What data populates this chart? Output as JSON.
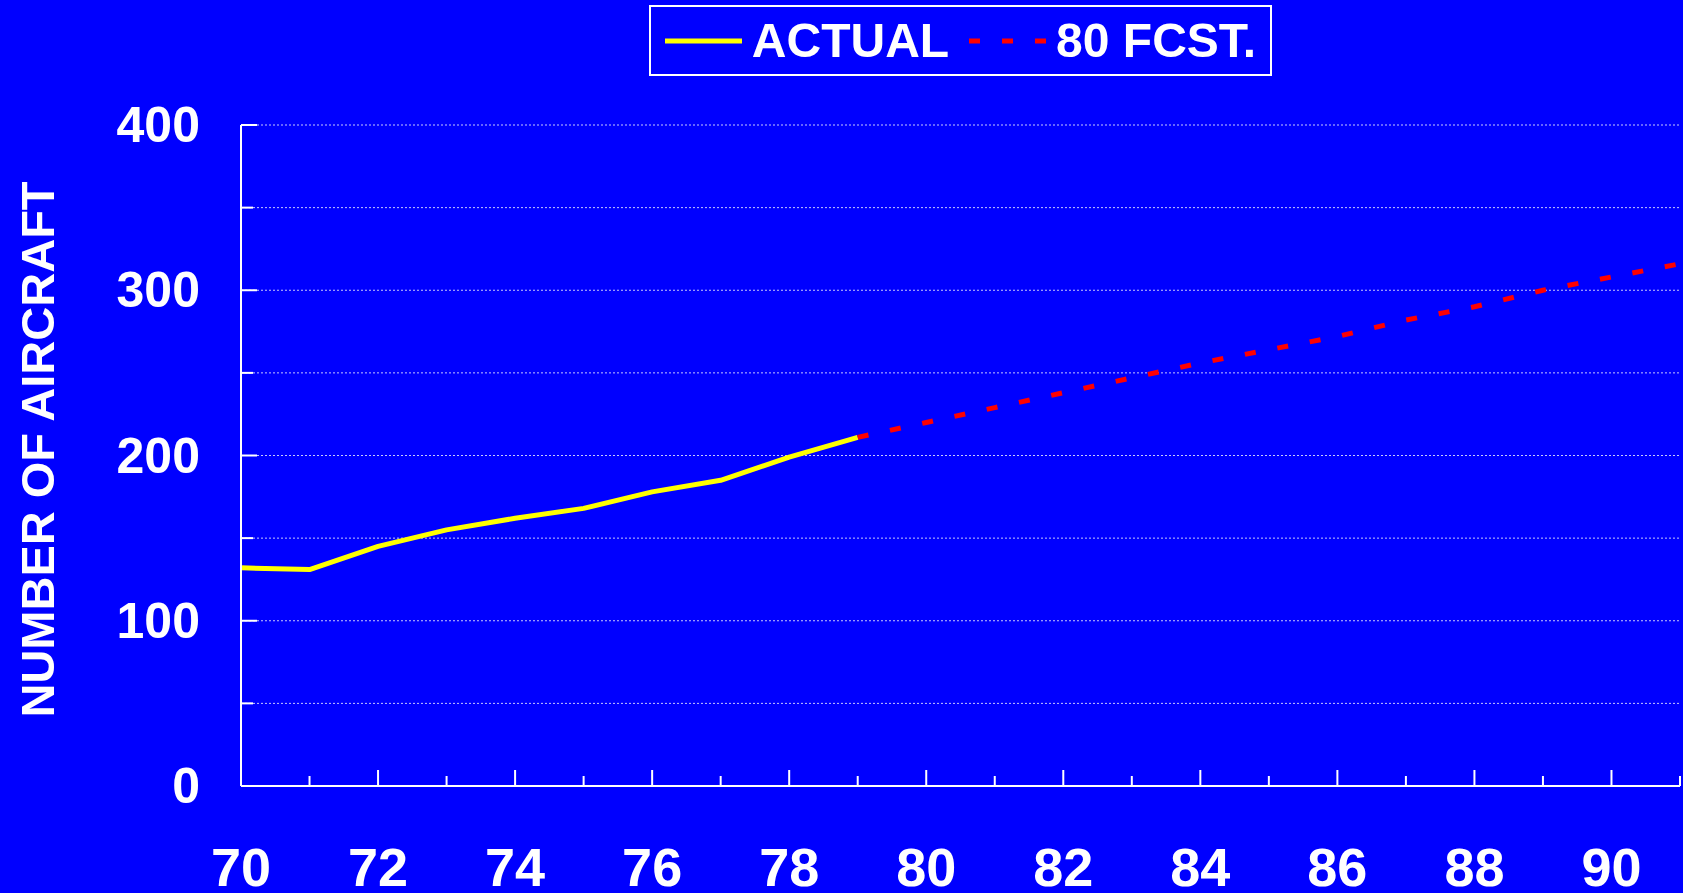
{
  "chart_data": {
    "type": "line",
    "ylabel": "NUMBER OF AIRCRAFT",
    "series": [
      {
        "name": "ACTUAL",
        "color": "#ffff00",
        "line_style": "solid",
        "x": [
          70,
          71,
          72,
          73,
          74,
          75,
          76,
          77,
          78,
          79
        ],
        "values": [
          132,
          131,
          145,
          155,
          162,
          168,
          178,
          185,
          199,
          211
        ]
      },
      {
        "name": "80 FCST.",
        "color": "#ff0000",
        "line_style": "dashed",
        "x": [
          79,
          80,
          81,
          82,
          83,
          84,
          85,
          86,
          87,
          88,
          89,
          90,
          91
        ],
        "values": [
          211,
          220,
          229,
          238,
          247,
          256,
          264,
          272,
          282,
          290,
          300,
          308,
          316
        ]
      }
    ],
    "xlim": [
      70,
      91
    ],
    "xticks": [
      70,
      {
        "value": 71,
        "label": null
      },
      72,
      {
        "value": 73,
        "label": null
      },
      74,
      {
        "value": 75,
        "label": null
      },
      76,
      {
        "value": 77,
        "label": null
      },
      78,
      {
        "value": 79,
        "label": null
      },
      80,
      {
        "value": 81,
        "label": null
      },
      82,
      {
        "value": 83,
        "label": null
      },
      84,
      {
        "value": 85,
        "label": null
      },
      86,
      {
        "value": 87,
        "label": null
      },
      88,
      {
        "value": 89,
        "label": null
      },
      90,
      {
        "value": 91,
        "label": null
      }
    ],
    "ylim": [
      0,
      400
    ],
    "yticks": [
      0,
      {
        "value": 50,
        "label": null
      },
      100,
      {
        "value": 150,
        "label": null
      },
      200,
      {
        "value": 250,
        "label": null
      },
      300,
      {
        "value": 350,
        "label": null
      },
      400
    ],
    "grid": "y",
    "legend": "top"
  }
}
